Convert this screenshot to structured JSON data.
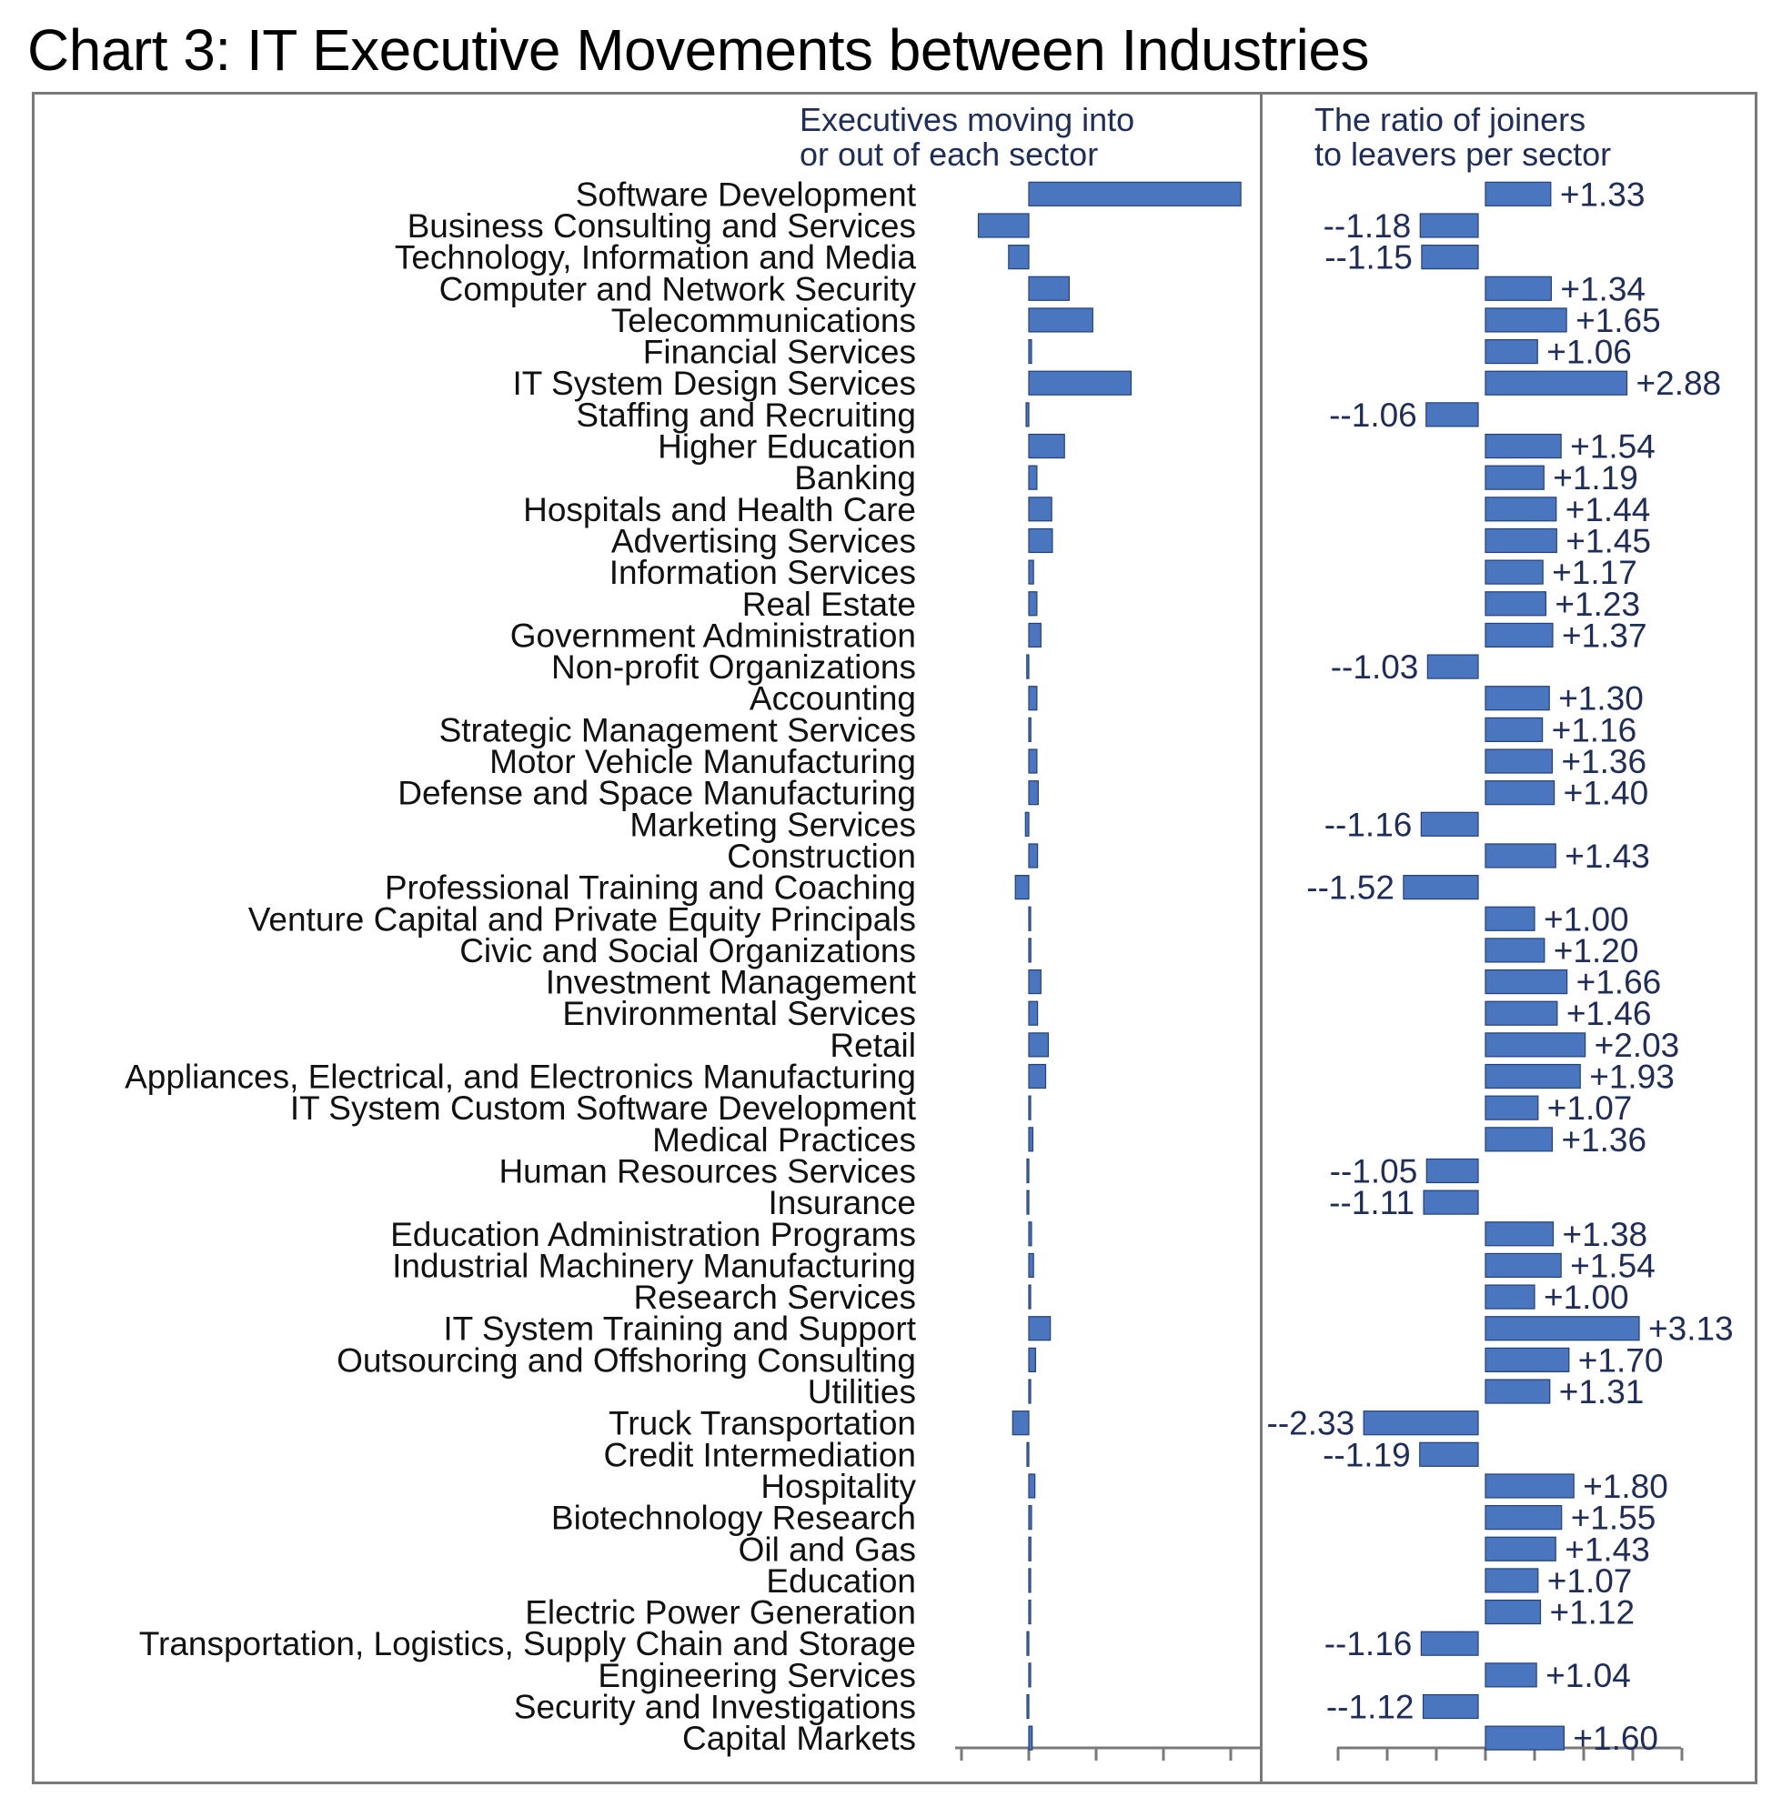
{
  "title": "Chart 3: IT Executive Movements  between Industries",
  "colors": {
    "bar_fill": "#4a76bf",
    "bar_stroke": "#23407a",
    "label_text": "#1f2d5a",
    "frame": "#7a7a7a"
  },
  "chart_data": [
    {
      "type": "bar",
      "orientation": "horizontal",
      "title": "Executives moving into\nor out of each sector",
      "categories": [
        "Software Development",
        "Business Consulting and Services",
        "Technology, Information and Media",
        "Computer and Network Security",
        "Telecommunications",
        "Financial Services",
        "IT System Design Services",
        "Staffing and Recruiting",
        "Higher Education",
        "Banking",
        "Hospitals and Health Care",
        "Advertising Services",
        "Information Services",
        "Real Estate",
        "Government Administration",
        "Non-profit Organizations",
        "Accounting",
        "Strategic Management Services",
        "Motor Vehicle Manufacturing",
        "Defense and Space Manufacturing",
        "Marketing Services",
        "Construction",
        "Professional Training and Coaching",
        "Venture Capital and Private Equity Principals",
        "Civic and Social Organizations",
        "Investment Management",
        "Environmental Services",
        "Retail",
        "Appliances, Electrical, and Electronics Manufacturing",
        "IT System Custom Software Development",
        "Medical Practices",
        "Human Resources Services",
        "Insurance",
        "Education Administration Programs",
        "Industrial Machinery Manufacturing",
        "Research Services",
        "IT System Training and Support",
        "Outsourcing and Offshoring Consulting",
        "Utilities",
        "Truck Transportation",
        "Credit Intermediation",
        "Hospitality",
        "Biotechnology Research",
        "Oil and Gas",
        "Education",
        "Electric Power Generation",
        "Transportation, Logistics, Supply Chain and Storage",
        "Engineering Services",
        "Security and Investigations",
        "Capital Markets"
      ],
      "values": [
        3.15,
        -0.75,
        -0.3,
        0.6,
        0.95,
        0.04,
        1.52,
        -0.04,
        0.53,
        0.12,
        0.34,
        0.35,
        0.07,
        0.12,
        0.18,
        -0.03,
        0.12,
        0.03,
        0.12,
        0.14,
        -0.05,
        0.13,
        -0.2,
        0.0,
        0.03,
        0.18,
        0.13,
        0.29,
        0.25,
        0.0,
        0.06,
        -0.01,
        -0.01,
        0.04,
        0.07,
        0.0,
        0.32,
        0.1,
        0.01,
        -0.24,
        -0.01,
        0.09,
        0.04,
        0.03,
        0.0,
        0.0,
        -0.01,
        0.0,
        -0.01,
        0.05
      ],
      "xlim": [
        -1,
        3.5
      ],
      "ticks": [
        -1,
        0,
        1,
        2,
        3
      ],
      "tick_labels_shown": false
    },
    {
      "type": "bar",
      "orientation": "horizontal",
      "title": "The ratio of joiners\nto leavers per sector",
      "values": [
        1.33,
        -1.18,
        -1.15,
        1.34,
        1.65,
        1.06,
        2.88,
        -1.06,
        1.54,
        1.19,
        1.44,
        1.45,
        1.17,
        1.23,
        1.37,
        -1.03,
        1.3,
        1.16,
        1.36,
        1.4,
        -1.16,
        1.43,
        -1.52,
        1.0,
        1.2,
        1.66,
        1.46,
        2.03,
        1.93,
        1.07,
        1.36,
        -1.05,
        -1.11,
        1.38,
        1.54,
        1.0,
        3.13,
        1.7,
        1.31,
        -2.33,
        -1.19,
        1.8,
        1.55,
        1.43,
        1.07,
        1.12,
        -1.16,
        1.04,
        -1.12,
        1.6
      ],
      "labels": [
        "+1.33",
        "--1.18",
        "--1.15",
        "+1.34",
        "+1.65",
        "+1.06",
        "+2.88",
        "--1.06",
        "+1.54",
        "+1.19",
        "+1.44",
        "+1.45",
        "+1.17",
        "+1.23",
        "+1.37",
        "--1.03",
        "+1.30",
        "+1.16",
        "+1.36",
        "+1.40",
        "--1.16",
        "+1.43",
        "--1.52",
        "+1.00",
        "+1.20",
        "+1.66",
        "+1.46",
        "+2.03",
        "+1.93",
        "+1.07",
        "+1.36",
        "--1.05",
        "--1.11",
        "+1.38",
        "+1.54",
        "+1.00",
        "+3.13",
        "+1.70",
        "+1.31",
        "--2.33",
        "--1.19",
        "+1.80",
        "+1.55",
        "+1.43",
        "+1.07",
        "+1.12",
        "--1.16",
        "+1.04",
        "--1.12",
        "+1.60"
      ],
      "ticks": [
        -3,
        -2,
        -1,
        0,
        1,
        2,
        3,
        4
      ],
      "tick_labels_shown": false
    }
  ]
}
